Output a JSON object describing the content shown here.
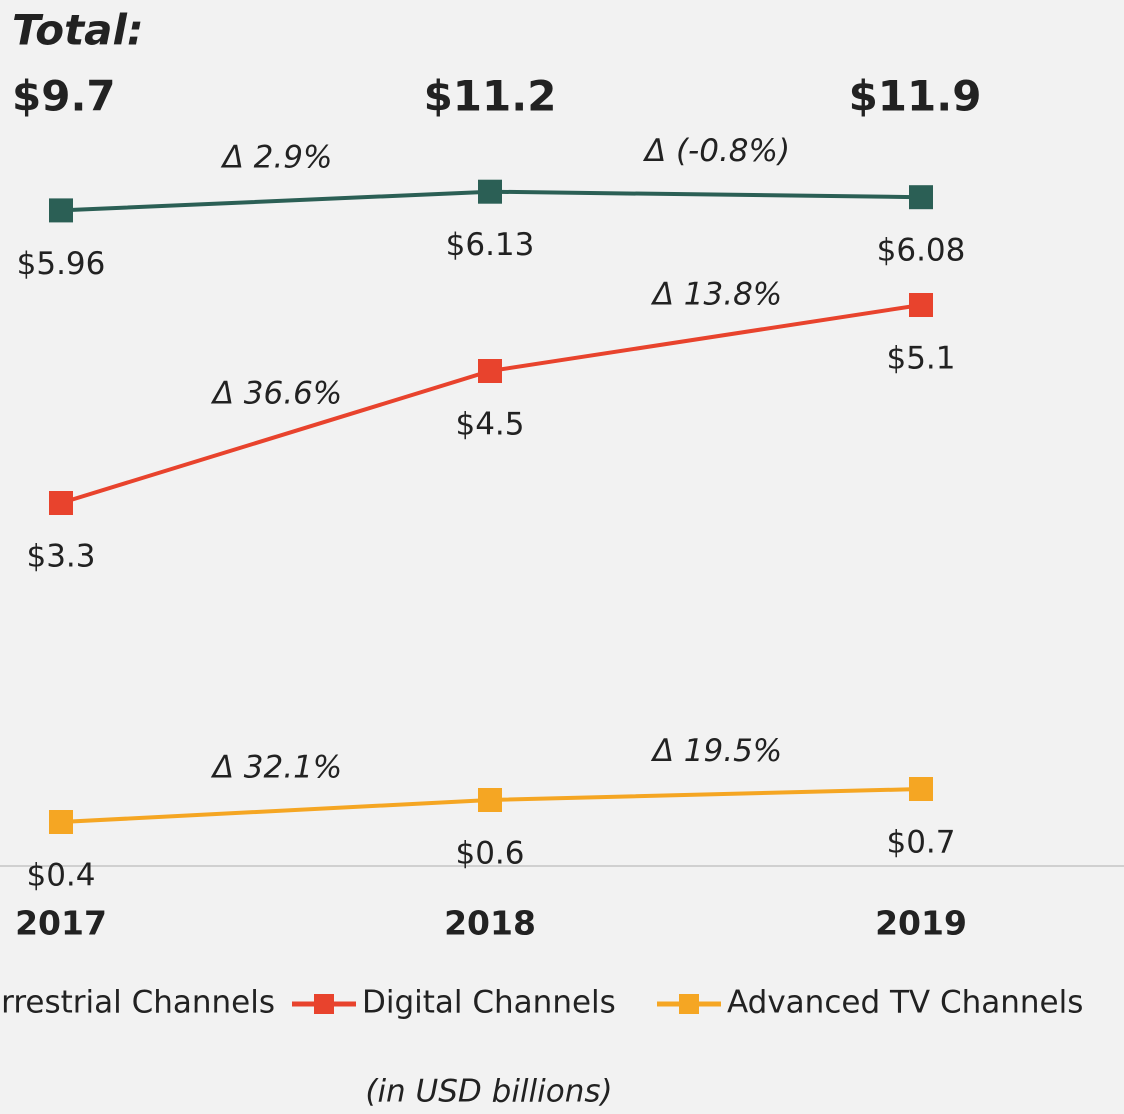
{
  "chart_data": {
    "type": "line",
    "totals": {
      "label": "Total:",
      "values": [
        9.7,
        11.2,
        11.9
      ],
      "value_labels": [
        "$9.7",
        "$11.2",
        "$11.9"
      ]
    },
    "categories": [
      "2017",
      "2018",
      "2019"
    ],
    "series": [
      {
        "name": "Terrestrial Channels",
        "color": "#2b5f55",
        "values": [
          5.96,
          6.13,
          6.08
        ],
        "value_labels": [
          "$5.96",
          "$6.13",
          "$6.08"
        ],
        "deltas": [
          2.9,
          -0.8
        ],
        "delta_labels": [
          "Δ 2.9%",
          "Δ (-0.8%)"
        ]
      },
      {
        "name": "Digital Channels",
        "color": "#e8432d",
        "values": [
          3.3,
          4.5,
          5.1
        ],
        "value_labels": [
          "$3.3",
          "$4.5",
          "$5.1"
        ],
        "deltas": [
          36.6,
          13.8
        ],
        "delta_labels": [
          "Δ 36.6%",
          "Δ 13.8%"
        ]
      },
      {
        "name": "Advanced TV Channels",
        "color": "#f5a623",
        "values": [
          0.4,
          0.6,
          0.7
        ],
        "value_labels": [
          "$0.4",
          "$0.6",
          "$0.7"
        ],
        "deltas": [
          32.1,
          19.5
        ],
        "delta_labels": [
          "Δ 32.1%",
          "Δ 19.5%"
        ]
      }
    ],
    "ylim": [
      0,
      7
    ],
    "subtitle": "(in USD billions)"
  }
}
